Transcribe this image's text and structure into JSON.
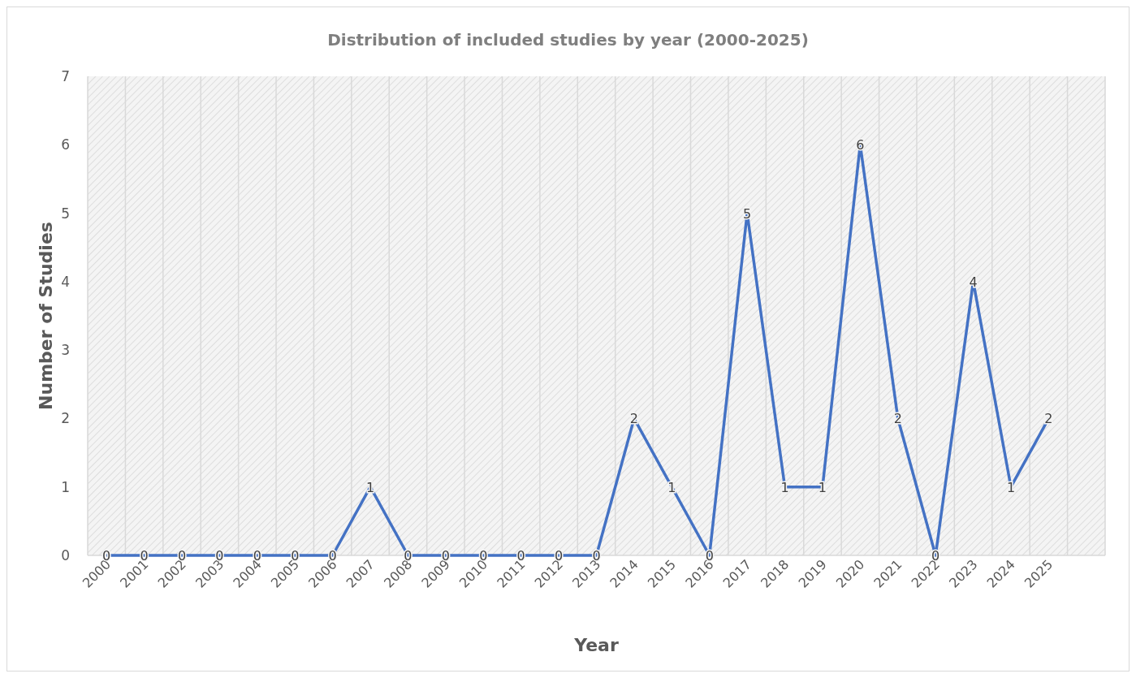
{
  "chart_data": {
    "type": "line",
    "title": "Distribution of included studies by year (2000-2025)",
    "xlabel": "Year",
    "ylabel": "Number of Studies",
    "categories": [
      "2000",
      "2001",
      "2002",
      "2003",
      "2004",
      "2005",
      "2006",
      "2007",
      "2008",
      "2009",
      "2010",
      "2011",
      "2012",
      "2013",
      "2014",
      "2015",
      "2016",
      "2017",
      "2018",
      "2019",
      "2020",
      "2021",
      "2022",
      "2023",
      "2024",
      "2025"
    ],
    "series": [
      {
        "color": "#4472c4",
        "values": [
          0,
          0,
          0,
          0,
          0,
          0,
          0,
          1,
          0,
          0,
          0,
          0,
          0,
          0,
          2,
          1,
          0,
          5,
          1,
          1,
          6,
          2,
          0,
          4,
          1,
          2
        ]
      }
    ],
    "ylim": [
      0,
      7
    ],
    "yticks": [
      0,
      1,
      2,
      3,
      4,
      5,
      6,
      7
    ],
    "grid": "x",
    "data_labels": true,
    "marker": "none",
    "line_style": "solid"
  }
}
